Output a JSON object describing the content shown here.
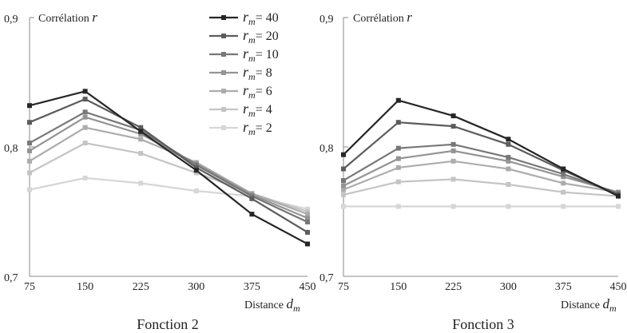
{
  "figure": {
    "markers_x": [
      75,
      150,
      225,
      300,
      375,
      450
    ],
    "series_names": [
      "40",
      "20",
      "10",
      "8",
      "6",
      "4",
      "2"
    ],
    "series_colors": [
      "#262626",
      "#5c5c5c",
      "#777777",
      "#949494",
      "#acacac",
      "#c4c4c4",
      "#d6d6d6"
    ],
    "legend_prefix": "r",
    "legend_sub": "m",
    "legend_eq": "= "
  },
  "chart_data": [
    {
      "type": "line",
      "title": "Fonction 2",
      "ylabel": "Corrélation",
      "ylabel_symbol": "r",
      "xlabel": "Distance",
      "xlabel_symbol": "d",
      "xlabel_sub": "m",
      "ylim": [
        0.7,
        0.9
      ],
      "yticks": [
        "0,9",
        "0,8",
        "0,7"
      ],
      "yticks_values": [
        0.9,
        0.8,
        0.7
      ],
      "x": [
        75,
        150,
        225,
        300,
        375,
        450
      ],
      "xticks": [
        "75",
        "150",
        "225",
        "300",
        "375",
        "450"
      ],
      "legend": "top-right",
      "grid": false,
      "series": [
        {
          "name": "40",
          "values": [
            0.832,
            0.843,
            0.812,
            0.782,
            0.748,
            0.725
          ]
        },
        {
          "name": "20",
          "values": [
            0.819,
            0.837,
            0.815,
            0.784,
            0.76,
            0.734
          ]
        },
        {
          "name": "10",
          "values": [
            0.803,
            0.827,
            0.813,
            0.786,
            0.762,
            0.742
          ]
        },
        {
          "name": "8",
          "values": [
            0.797,
            0.823,
            0.81,
            0.787,
            0.763,
            0.745
          ]
        },
        {
          "name": "6",
          "values": [
            0.789,
            0.815,
            0.806,
            0.788,
            0.764,
            0.748
          ]
        },
        {
          "name": "4",
          "values": [
            0.78,
            0.803,
            0.795,
            0.78,
            0.764,
            0.75
          ]
        },
        {
          "name": "2",
          "values": [
            0.767,
            0.776,
            0.772,
            0.766,
            0.762,
            0.752
          ]
        }
      ]
    },
    {
      "type": "line",
      "title": "Fonction 3",
      "ylabel": "Corrélation",
      "ylabel_symbol": "r",
      "xlabel": "Distance",
      "xlabel_symbol": "d",
      "xlabel_sub": "m",
      "ylim": [
        0.7,
        0.9
      ],
      "yticks": [
        "0,9",
        "0,8",
        "0,7"
      ],
      "yticks_values": [
        0.9,
        0.8,
        0.7
      ],
      "x": [
        75,
        150,
        225,
        300,
        375,
        450
      ],
      "xticks": [
        "75",
        "150",
        "225",
        "300",
        "375",
        "450"
      ],
      "grid": false,
      "series": [
        {
          "name": "40",
          "values": [
            0.794,
            0.836,
            0.824,
            0.806,
            0.783,
            0.762
          ]
        },
        {
          "name": "20",
          "values": [
            0.783,
            0.819,
            0.816,
            0.802,
            0.782,
            0.763
          ]
        },
        {
          "name": "10",
          "values": [
            0.774,
            0.799,
            0.802,
            0.792,
            0.779,
            0.764
          ]
        },
        {
          "name": "8",
          "values": [
            0.77,
            0.791,
            0.797,
            0.789,
            0.777,
            0.765
          ]
        },
        {
          "name": "6",
          "values": [
            0.767,
            0.784,
            0.789,
            0.783,
            0.772,
            0.765
          ]
        },
        {
          "name": "4",
          "values": [
            0.763,
            0.773,
            0.775,
            0.771,
            0.765,
            0.762
          ]
        },
        {
          "name": "2",
          "values": [
            0.754,
            0.754,
            0.754,
            0.754,
            0.754,
            0.754
          ]
        }
      ]
    }
  ]
}
